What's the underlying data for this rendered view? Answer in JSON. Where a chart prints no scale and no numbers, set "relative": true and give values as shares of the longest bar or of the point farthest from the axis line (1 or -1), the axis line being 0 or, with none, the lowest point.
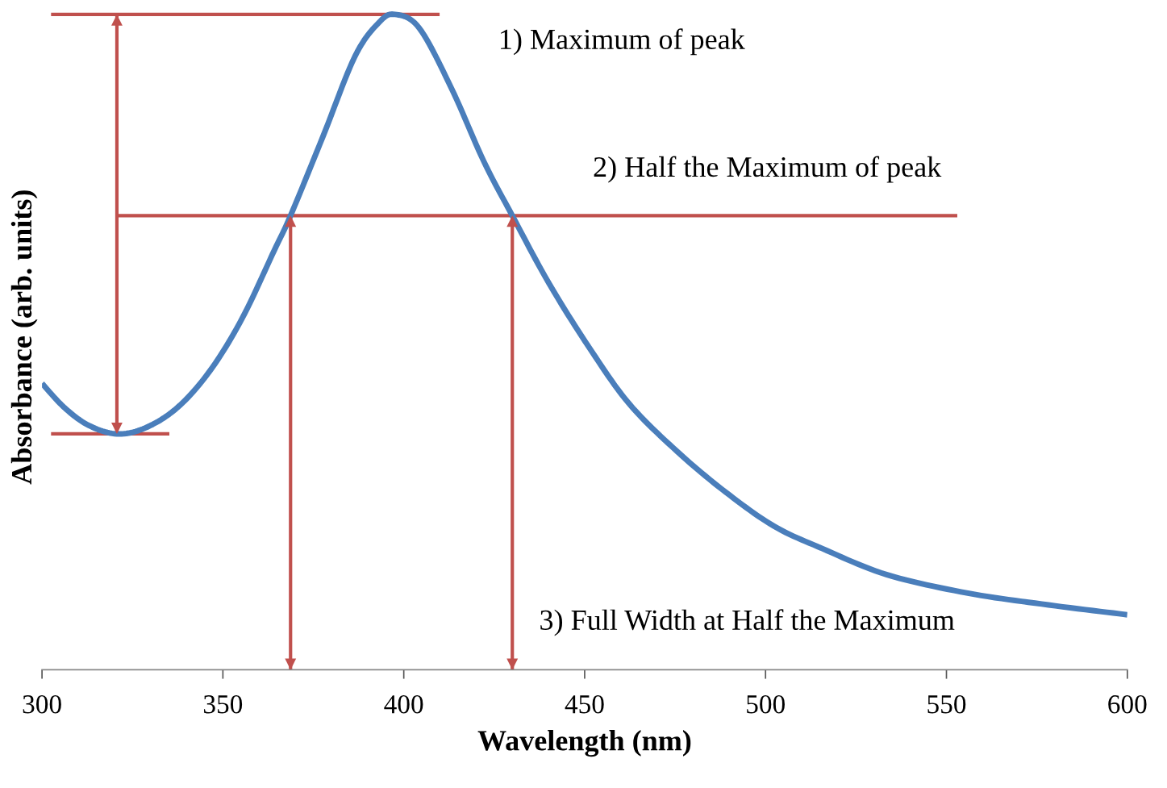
{
  "chart_data": {
    "type": "line",
    "relative": true,
    "xlabel": "Wavelength (nm)",
    "ylabel": "Absorbance (arb. units)",
    "xlim": [
      300,
      600
    ],
    "xticks": [
      300,
      350,
      400,
      450,
      500,
      550,
      600
    ],
    "grid": false,
    "legend": false,
    "marker": "none",
    "line_style": "solid",
    "series": [
      {
        "color": "#4a7ebb",
        "x": [
          300,
          306.2,
          312.9,
          320.7,
          328.5,
          337.4,
          346.4,
          355.3,
          364.2,
          368.7,
          377.6,
          386.5,
          393.2,
          397.6,
          404.3,
          413.2,
          422.1,
          430,
          440,
          451.1,
          462.3,
          475.6,
          489,
          502.4,
          515.7,
          533.6,
          555.9,
          578.2,
          600
        ],
        "values": [
          0.437,
          0.4,
          0.373,
          0.36,
          0.369,
          0.4,
          0.456,
          0.536,
          0.64,
          0.693,
          0.813,
          0.936,
          0.988,
          1.0,
          0.979,
          0.887,
          0.776,
          0.693,
          0.591,
          0.493,
          0.406,
          0.333,
          0.271,
          0.219,
          0.185,
          0.145,
          0.117,
          0.099,
          0.084
        ]
      },
      {
        "type": "line",
        "color": "#c0504d",
        "x": [
          302.5,
          409.9
        ],
        "values": [
          1.0,
          1.0
        ]
      },
      {
        "type": "line",
        "color": "#c0504d",
        "x": [
          302.5,
          335.2
        ],
        "values": [
          0.36,
          0.36
        ]
      },
      {
        "type": "line",
        "color": "#c0504d",
        "x": [
          320.7,
          553
        ],
        "values": [
          0.693,
          0.693
        ]
      },
      {
        "type": "line",
        "color": "#c0504d",
        "x": [
          320.7,
          320.7
        ],
        "values": [
          0.36,
          1.0
        ]
      },
      {
        "type": "line",
        "color": "#c0504d",
        "x": [
          368.7,
          368.7
        ],
        "values": [
          0,
          0.693
        ]
      },
      {
        "type": "line",
        "color": "#c0504d",
        "x": [
          430,
          430
        ],
        "values": [
          0,
          0.693
        ]
      }
    ],
    "annotations": [
      "1) Maximum of peak",
      "2) Half the Maximum of peak",
      "3) Full Width at Half the Maximum"
    ]
  }
}
